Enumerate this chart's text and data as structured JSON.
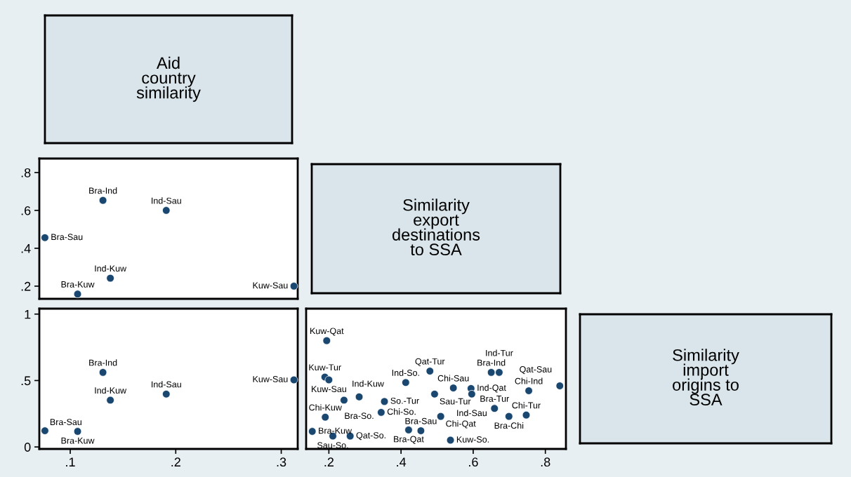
{
  "chart_data": [
    {
      "type": "other",
      "title": "Aid\ncountry\nsimilarity"
    },
    {
      "type": "scatter",
      "marker": "circle",
      "color": "#1a476f",
      "tick_labels": "y",
      "x": [
        0.131,
        0.191,
        0.076,
        0.138,
        0.107,
        0.312
      ],
      "values": [
        0.653,
        0.6,
        0.456,
        0.242,
        0.158,
        0.2
      ],
      "xlim": [
        0.0707,
        0.3156
      ],
      "ylim": [
        0.133,
        0.874
      ],
      "yticks": [
        {
          "value": 0.2,
          "label": ".2"
        },
        {
          "value": 0.4,
          "label": ".4"
        },
        {
          "value": 0.6,
          "label": ".6"
        },
        {
          "value": 0.8,
          "label": ".8"
        }
      ],
      "annotations": [
        {
          "text": "Bra-Ind",
          "x": 0.131,
          "y": 0.653
        },
        {
          "text": "Ind-Sau",
          "x": 0.191,
          "y": 0.6
        },
        {
          "text": "Bra-Sau",
          "x": 0.076,
          "y": 0.456
        },
        {
          "text": "Ind-Kuw",
          "x": 0.138,
          "y": 0.242
        },
        {
          "text": "Bra-Kuw",
          "x": 0.107,
          "y": 0.158
        },
        {
          "text": "Kuw-Sau",
          "x": 0.312,
          "y": 0.2
        }
      ]
    },
    {
      "type": "other",
      "title": "Similarity\nexport\ndestinations\nto SSA"
    },
    {
      "type": "scatter",
      "marker": "circle",
      "color": "#1a476f",
      "x": [
        0.131,
        0.138,
        0.191,
        0.076,
        0.107,
        0.312
      ],
      "values": [
        0.561,
        0.352,
        0.398,
        0.122,
        0.117,
        0.505
      ],
      "xlim": [
        0.0707,
        0.3156
      ],
      "ylim": [
        -0.015,
        1.041
      ],
      "xticks": [
        {
          "value": 0.1,
          "label": ".1"
        },
        {
          "value": 0.2,
          "label": ".2"
        },
        {
          "value": 0.3,
          "label": ".3"
        }
      ],
      "yticks": [
        0,
        {
          "value": 0.5,
          "label": ".5"
        },
        1
      ],
      "annotations": [
        {
          "text": "Bra-Ind",
          "x": 0.131,
          "y": 0.561
        },
        {
          "text": "Ind-Kuw",
          "x": 0.138,
          "y": 0.352
        },
        {
          "text": "Ind-Sau",
          "x": 0.191,
          "y": 0.398
        },
        {
          "text": "Bra-Sau",
          "x": 0.076,
          "y": 0.122
        },
        {
          "text": "Bra-Kuw",
          "x": 0.107,
          "y": 0.117
        },
        {
          "text": "Kuw-Sau",
          "x": 0.312,
          "y": 0.505
        }
      ]
    },
    {
      "type": "scatter",
      "marker": "circle",
      "color": "#1a476f",
      "tick_labels": "x",
      "x": [
        0.194,
        0.189,
        0.2,
        0.242,
        0.284,
        0.354,
        0.345,
        0.19,
        0.154,
        0.211,
        0.259,
        0.48,
        0.413,
        0.421,
        0.455,
        0.493,
        0.545,
        0.594,
        0.596,
        0.51,
        0.537,
        0.65,
        0.672,
        0.754,
        0.84,
        0.659,
        0.699,
        0.747
      ],
      "values": [
        0.8,
        0.526,
        0.505,
        0.352,
        0.377,
        0.342,
        0.26,
        0.224,
        0.117,
        0.082,
        0.082,
        0.571,
        0.485,
        0.128,
        0.122,
        0.398,
        0.444,
        0.44,
        0.398,
        0.23,
        0.051,
        0.561,
        0.561,
        0.423,
        0.46,
        0.29,
        0.23,
        0.24
      ],
      "xlim": [
        0.137,
        0.857
      ],
      "ylim": [
        -0.015,
        1.041
      ],
      "xticks": [
        {
          "value": 0.2,
          "label": ".2"
        },
        {
          "value": 0.4,
          "label": ".4"
        },
        {
          "value": 0.6,
          "label": ".6"
        },
        {
          "value": 0.8,
          "label": ".8"
        }
      ],
      "annotations": [
        {
          "text": "Kuw-Qat",
          "x": 0.194,
          "y": 0.8
        },
        {
          "text": "Kuw-Tur",
          "x": 0.189,
          "y": 0.526
        },
        {
          "text": "Kuw-Sau",
          "x": 0.2,
          "y": 0.505
        },
        {
          "text": "Ind-Kuw",
          "x": 0.242,
          "y": 0.352
        },
        {
          "text": "Bra-So.",
          "x": 0.284,
          "y": 0.377
        },
        {
          "text": "So.-Tur",
          "x": 0.354,
          "y": 0.342
        },
        {
          "text": "Chi-So.",
          "x": 0.345,
          "y": 0.26
        },
        {
          "text": "Chi-Kuw",
          "x": 0.19,
          "y": 0.224
        },
        {
          "text": "Bra-Kuw",
          "x": 0.154,
          "y": 0.117
        },
        {
          "text": "Sau-So.",
          "x": 0.211,
          "y": 0.082
        },
        {
          "text": "Qat-So.",
          "x": 0.259,
          "y": 0.082
        },
        {
          "text": "Qat-Tur",
          "x": 0.48,
          "y": 0.571
        },
        {
          "text": "Ind-So.",
          "x": 0.413,
          "y": 0.485
        },
        {
          "text": "Bra-Qat",
          "x": 0.421,
          "y": 0.128
        },
        {
          "text": "Bra-Sau",
          "x": 0.455,
          "y": 0.122
        },
        {
          "text": "Sau-Tur",
          "x": 0.493,
          "y": 0.398
        },
        {
          "text": "Chi-Sau",
          "x": 0.545,
          "y": 0.444
        },
        {
          "text": "Ind-Qat",
          "x": 0.594,
          "y": 0.44
        },
        {
          "text": "Ind-Sau",
          "x": 0.596,
          "y": 0.398
        },
        {
          "text": "Chi-Qat",
          "x": 0.51,
          "y": 0.23
        },
        {
          "text": "Kuw-So.",
          "x": 0.537,
          "y": 0.051
        },
        {
          "text": "Bra-Ind",
          "x": 0.65,
          "y": 0.561
        },
        {
          "text": "Ind-Tur",
          "x": 0.672,
          "y": 0.561
        },
        {
          "text": "Chi-Ind",
          "x": 0.754,
          "y": 0.423
        },
        {
          "text": "Qat-Sau",
          "x": 0.84,
          "y": 0.46
        },
        {
          "text": "Bra-Tur",
          "x": 0.659,
          "y": 0.29
        },
        {
          "text": "Bra-Chi",
          "x": 0.699,
          "y": 0.23
        },
        {
          "text": "Chi-Tur",
          "x": 0.747,
          "y": 0.24
        }
      ]
    },
    {
      "type": "other",
      "title": "Similarity\nimport\norigins to\nSSA"
    }
  ]
}
